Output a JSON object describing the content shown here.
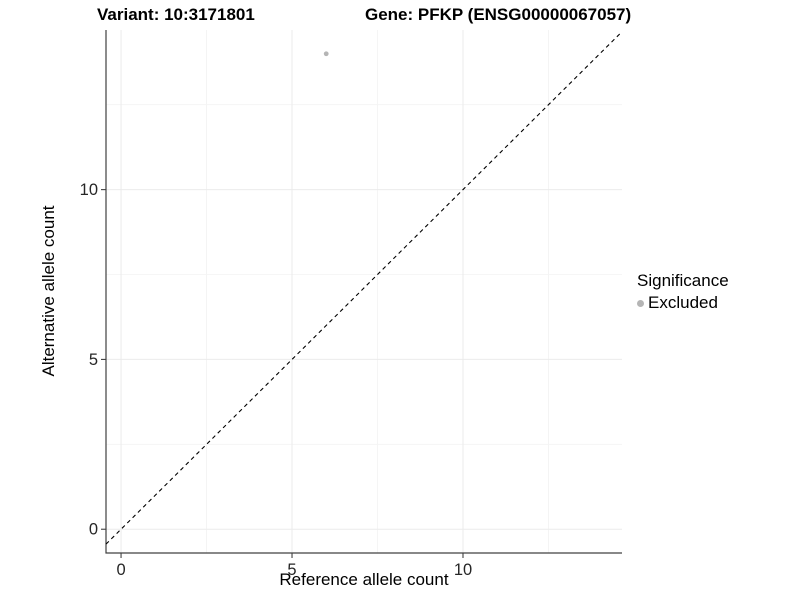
{
  "titles": {
    "left": "Variant: 10:3171801",
    "right": "Gene: PFKP (ENSG00000067057)"
  },
  "axes": {
    "x_label": "Reference allele count",
    "y_label": "Alternative allele count"
  },
  "legend": {
    "title": "Significance",
    "position": "right",
    "entries": [
      {
        "label": "Excluded",
        "color": "#b5b5b5"
      }
    ]
  },
  "colors": {
    "background": "#ffffff",
    "axis_line": "#404040",
    "tick_label": "#262626",
    "grid_major": "#ebebeb",
    "grid_minor": "#f4f4f4",
    "reference_line": "#000000",
    "point": "#b5b5b5"
  },
  "chart_data": {
    "type": "scatter",
    "title": "Variant: 10:3171801 / Gene: PFKP (ENSG00000067057)",
    "xlabel": "Reference allele count",
    "ylabel": "Alternative allele count",
    "xlim": [
      -0.44,
      14.65
    ],
    "ylim": [
      -0.7,
      14.7
    ],
    "x_ticks": [
      0,
      5,
      10
    ],
    "y_ticks": [
      0,
      5,
      10
    ],
    "x_minor_ticks": [
      2.5,
      7.5,
      12.5
    ],
    "y_minor_ticks": [
      2.5,
      7.5,
      12.5
    ],
    "grid": "major and minor, light gray, white panel background",
    "legend_position": "right",
    "series": [
      {
        "name": "Excluded",
        "color": "#b5b5b5",
        "points": [
          {
            "x": 6,
            "y": 14
          }
        ]
      }
    ],
    "reference_line": {
      "type": "identity y=x",
      "style": "dashed",
      "color": "#000000"
    }
  }
}
